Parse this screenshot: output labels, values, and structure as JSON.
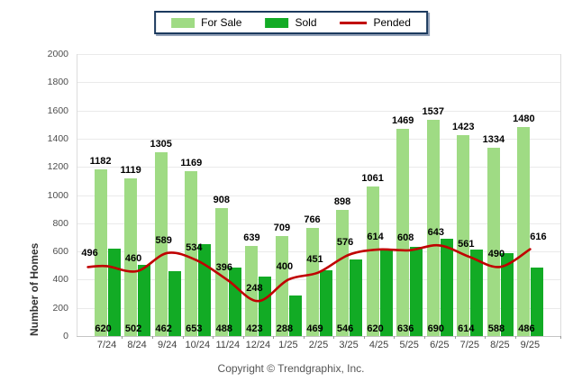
{
  "legend": {
    "items": [
      {
        "label": "For Sale"
      },
      {
        "label": "Sold"
      },
      {
        "label": "Pended"
      }
    ]
  },
  "footer": {
    "copyright": "Copyright © Trendgraphix, Inc."
  },
  "colors": {
    "for_sale": "#9FDB84",
    "sold": "#12AB25",
    "pended": "#C00000",
    "legend_border": "#1C3A5E",
    "gridline": "#EAEAEA"
  },
  "chart_data": {
    "type": "bar",
    "subtype": "grouped bars with smoothed line overlay",
    "categories": [
      "7/24",
      "8/24",
      "9/24",
      "10/24",
      "11/24",
      "12/24",
      "1/25",
      "2/25",
      "3/25",
      "4/25",
      "5/25",
      "6/25",
      "7/25",
      "8/25",
      "9/25"
    ],
    "series": [
      {
        "name": "For Sale",
        "type": "bar",
        "color": "#9FDB84",
        "values": [
          1182,
          1119,
          1305,
          1169,
          908,
          639,
          709,
          766,
          898,
          1061,
          1469,
          1537,
          1423,
          1334,
          1480
        ]
      },
      {
        "name": "Sold",
        "type": "bar",
        "color": "#12AB25",
        "values": [
          620,
          502,
          462,
          653,
          488,
          423,
          288,
          469,
          546,
          620,
          636,
          690,
          614,
          588,
          486
        ]
      },
      {
        "name": "Pended",
        "type": "line",
        "color": "#C00000",
        "values": [
          496,
          460,
          589,
          534,
          396,
          248,
          400,
          451,
          576,
          614,
          608,
          643,
          561,
          490,
          616
        ]
      }
    ],
    "xlabel": "",
    "ylabel": "Number of Homes",
    "ylim": [
      0,
      2000
    ],
    "ytick_step": 200,
    "yticks": [
      0,
      200,
      400,
      600,
      800,
      1000,
      1200,
      1400,
      1600,
      1800,
      2000
    ],
    "grid": true,
    "legend_position": "top",
    "value_labels": true
  }
}
